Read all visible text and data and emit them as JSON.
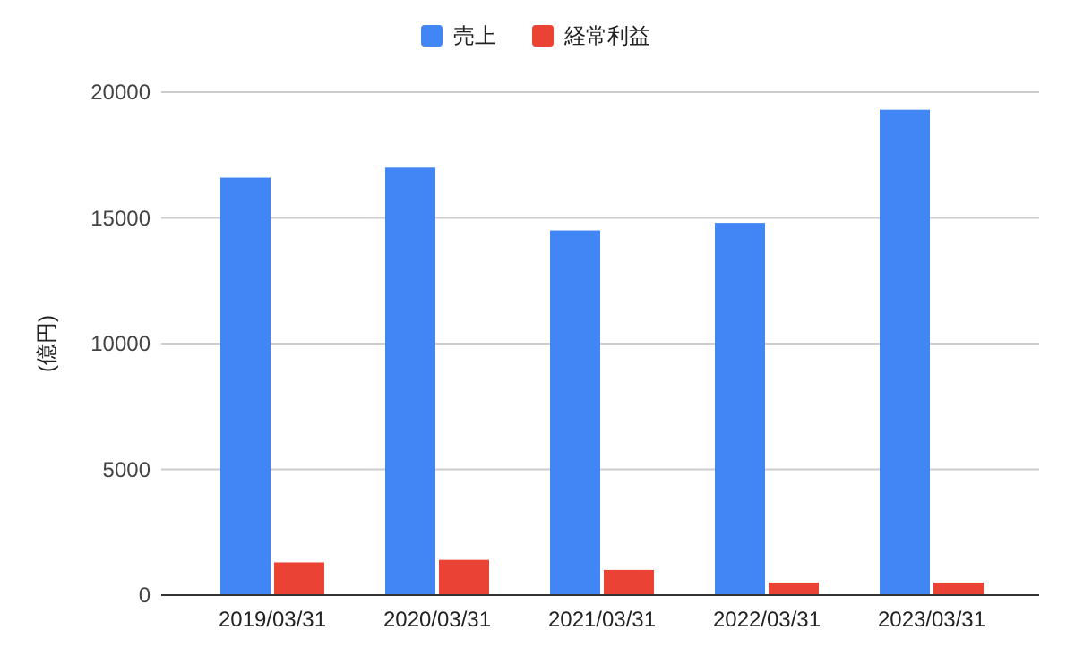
{
  "chart_data": {
    "type": "bar",
    "ylabel": "(億円)",
    "categories": [
      "2019/03/31",
      "2020/03/31",
      "2021/03/31",
      "2022/03/31",
      "2023/03/31"
    ],
    "series": [
      {
        "name": "売上",
        "color": "#4285f4",
        "values": [
          16600,
          17000,
          14500,
          14800,
          19300
        ]
      },
      {
        "name": "経常利益",
        "color": "#ea4335",
        "values": [
          1300,
          1400,
          1000,
          500,
          500
        ]
      }
    ],
    "ylim": [
      0,
      20000
    ],
    "yticks": [
      0,
      5000,
      10000,
      15000,
      20000
    ],
    "grid": "y",
    "legend": "top"
  }
}
